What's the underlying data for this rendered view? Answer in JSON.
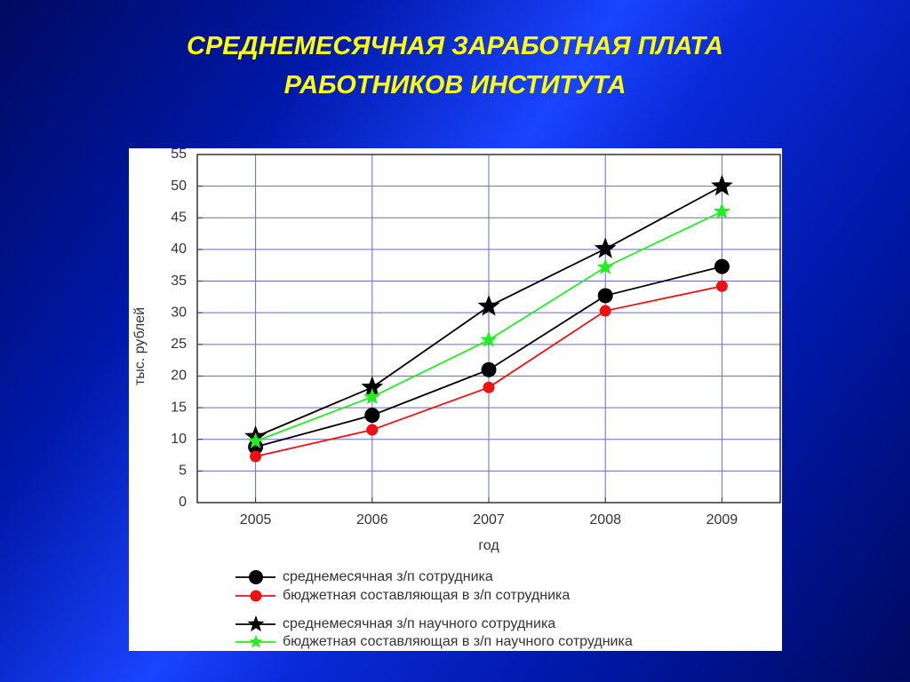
{
  "chart_data": {
    "type": "line",
    "title": "СРЕДНЕМЕСЯЧНАЯ ЗАРАБОТНАЯ ПЛАТА РАБОТНИКОВ ИНСТИТУТА",
    "xlabel": "год",
    "ylabel": "тыс. рублей",
    "x": [
      2005,
      2006,
      2007,
      2008,
      2009
    ],
    "xlim": [
      2004.5,
      2009.5
    ],
    "xticks": [
      2005,
      2006,
      2007,
      2008,
      2009
    ],
    "ylim": [
      0,
      55
    ],
    "yticks": [
      0,
      5,
      10,
      15,
      20,
      25,
      30,
      35,
      40,
      45,
      50,
      55
    ],
    "grid": true,
    "series": [
      {
        "name": "среднемесячная з/п сотрудника",
        "color": "#000000",
        "marker": "circle",
        "values": [
          8.8,
          13.8,
          21.0,
          32.7,
          37.3
        ]
      },
      {
        "name": "бюджетная составляющая в з/п сотрудника",
        "color": "#ee1111",
        "marker": "circle",
        "values": [
          7.3,
          11.5,
          18.2,
          30.3,
          34.2
        ]
      },
      {
        "name": "среднемесячная з/п научного сотрудника",
        "color": "#000000",
        "marker": "star",
        "values": [
          10.4,
          18.2,
          31.0,
          40.1,
          50.0
        ]
      },
      {
        "name": "бюджетная составляющая в з/п научного сотрудника",
        "color": "#22ee22",
        "marker": "star",
        "values": [
          9.7,
          16.7,
          25.7,
          37.2,
          46.0
        ]
      }
    ]
  }
}
